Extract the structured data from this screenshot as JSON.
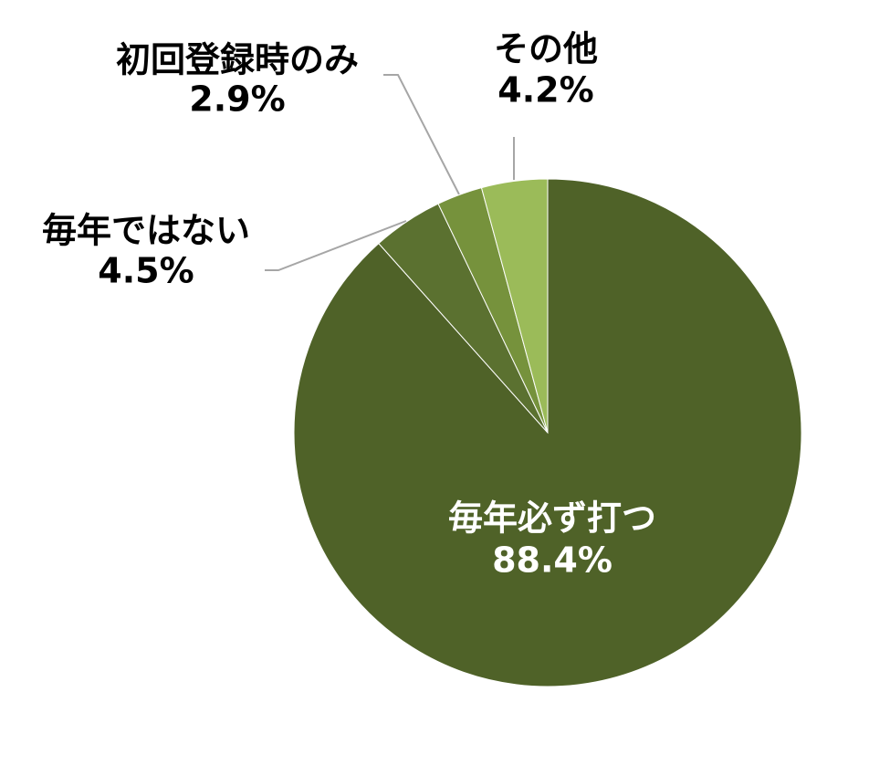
{
  "chart_data": {
    "type": "pie",
    "categories": [
      "毎年必ず打つ",
      "毎年ではない",
      "初回登録時のみ",
      "その他"
    ],
    "values": [
      88.4,
      4.5,
      2.9,
      4.2
    ],
    "value_labels": [
      "88.4%",
      "4.5%",
      "2.9%",
      "4.2%"
    ],
    "colors": [
      "#4f6228",
      "#5b7130",
      "#76923c",
      "#9bbb59"
    ]
  }
}
